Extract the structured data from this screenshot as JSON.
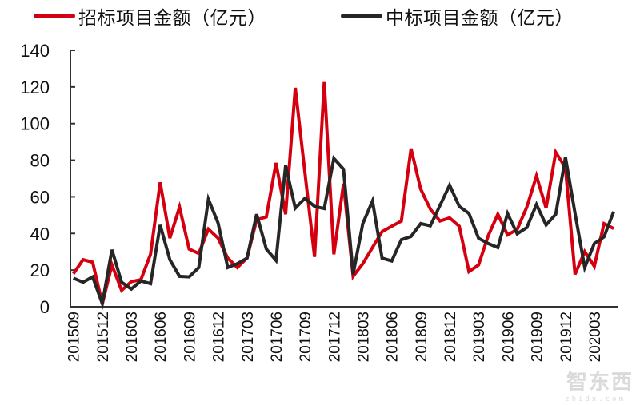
{
  "chart_data": {
    "type": "line",
    "title": "",
    "xlabel": "",
    "ylabel": "",
    "ylim": [
      0,
      140
    ],
    "yticks": [
      0,
      20,
      40,
      60,
      80,
      100,
      120,
      140
    ],
    "grid": false,
    "legend_position": "top",
    "x": [
      "201509",
      "201510",
      "201511",
      "201512",
      "201601",
      "201602",
      "201603",
      "201604",
      "201605",
      "201606",
      "201607",
      "201608",
      "201609",
      "201610",
      "201611",
      "201612",
      "201701",
      "201702",
      "201703",
      "201704",
      "201705",
      "201706",
      "201707",
      "201708",
      "201709",
      "201710",
      "201711",
      "201712",
      "201801",
      "201802",
      "201803",
      "201804",
      "201805",
      "201806",
      "201807",
      "201808",
      "201809",
      "201810",
      "201811",
      "201812",
      "201901",
      "201902",
      "201903",
      "201904",
      "201905",
      "201906",
      "201907",
      "201908",
      "201909",
      "201910",
      "201911",
      "201912",
      "202001",
      "202002",
      "202003",
      "202004",
      "202005"
    ],
    "xtick_labels": [
      "201509",
      "201512",
      "201603",
      "201606",
      "201609",
      "201612",
      "201703",
      "201706",
      "201709",
      "201712",
      "201803",
      "201806",
      "201809",
      "201812",
      "201903",
      "201906",
      "201909",
      "201912",
      "202003"
    ],
    "series": [
      {
        "name": "招标项目金额（亿元）",
        "color": "#d40010",
        "values": [
          18,
          25.7,
          24.3,
          1.7,
          22.8,
          9,
          13.7,
          14.8,
          28.7,
          67.9,
          37.4,
          54.4,
          31.5,
          29.1,
          42.4,
          37.4,
          26.5,
          21.4,
          26.7,
          47.5,
          49,
          78.5,
          50.5,
          119.5,
          73.4,
          27.2,
          122.7,
          28.6,
          67.2,
          16.6,
          23.5,
          32.3,
          41,
          43.9,
          46.8,
          86.3,
          64.2,
          53.3,
          46.8,
          48.5,
          43.9,
          19.2,
          22.8,
          38.8,
          50.5,
          39.2,
          42.2,
          54.4,
          71.5,
          53.8,
          84.3,
          75.9,
          17.7,
          30.1,
          22.1,
          45.4,
          42.7
        ]
      },
      {
        "name": "中标项目金额（亿元）",
        "color": "#262626",
        "values": [
          15.6,
          13.4,
          16.3,
          1.7,
          31.1,
          13.4,
          9.7,
          14.1,
          12.6,
          44.6,
          25.7,
          16.6,
          16.3,
          21.4,
          58.7,
          45.7,
          21.4,
          23.5,
          26.5,
          50.5,
          31.5,
          25.3,
          77.1,
          53.8,
          59.2,
          54.8,
          53.6,
          81,
          75.1,
          17.7,
          45.4,
          57.7,
          26.5,
          25,
          36.6,
          38.4,
          45.4,
          44.2,
          55.3,
          66.4,
          54.8,
          50.9,
          37.4,
          34.5,
          32.3,
          50.9,
          39.8,
          43.2,
          55.8,
          44.6,
          50.5,
          81.7,
          51,
          21.4,
          34.5,
          38.1,
          51.9
        ]
      }
    ]
  },
  "legend": {
    "items": [
      {
        "label": "招标项目金额（亿元）",
        "color": "#d40010"
      },
      {
        "label": "中标项目金额（亿元）",
        "color": "#262626"
      }
    ]
  },
  "watermark": {
    "text": "智东西",
    "sub": "zhidx.com"
  }
}
